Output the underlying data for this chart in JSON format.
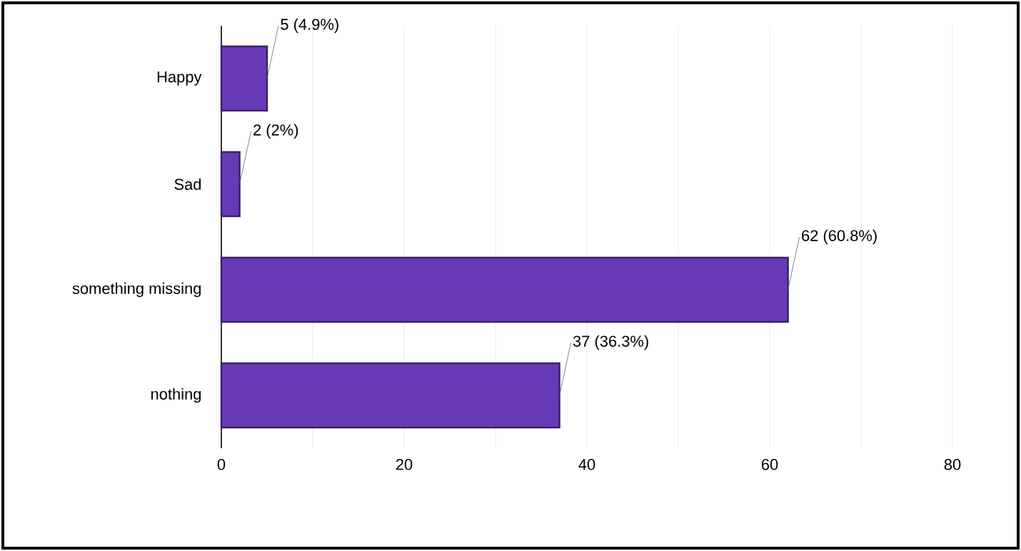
{
  "chart_data": {
    "type": "bar",
    "orientation": "horizontal",
    "categories": [
      "Happy",
      "Sad",
      "something missing",
      "nothing"
    ],
    "values": [
      5,
      2,
      62,
      37
    ],
    "value_labels": [
      "5 (4.9%)",
      "2 (2%)",
      "62 (60.8%)",
      "37 (36.3%)"
    ],
    "color": "#673ab7",
    "xlim": [
      0,
      80
    ],
    "xticks": [
      0,
      {
        "value": 10,
        "label": null
      },
      20,
      {
        "value": 30,
        "label": null
      },
      40,
      {
        "value": 50,
        "label": null
      },
      60,
      {
        "value": 70,
        "label": null
      },
      80
    ],
    "grid": "x"
  }
}
